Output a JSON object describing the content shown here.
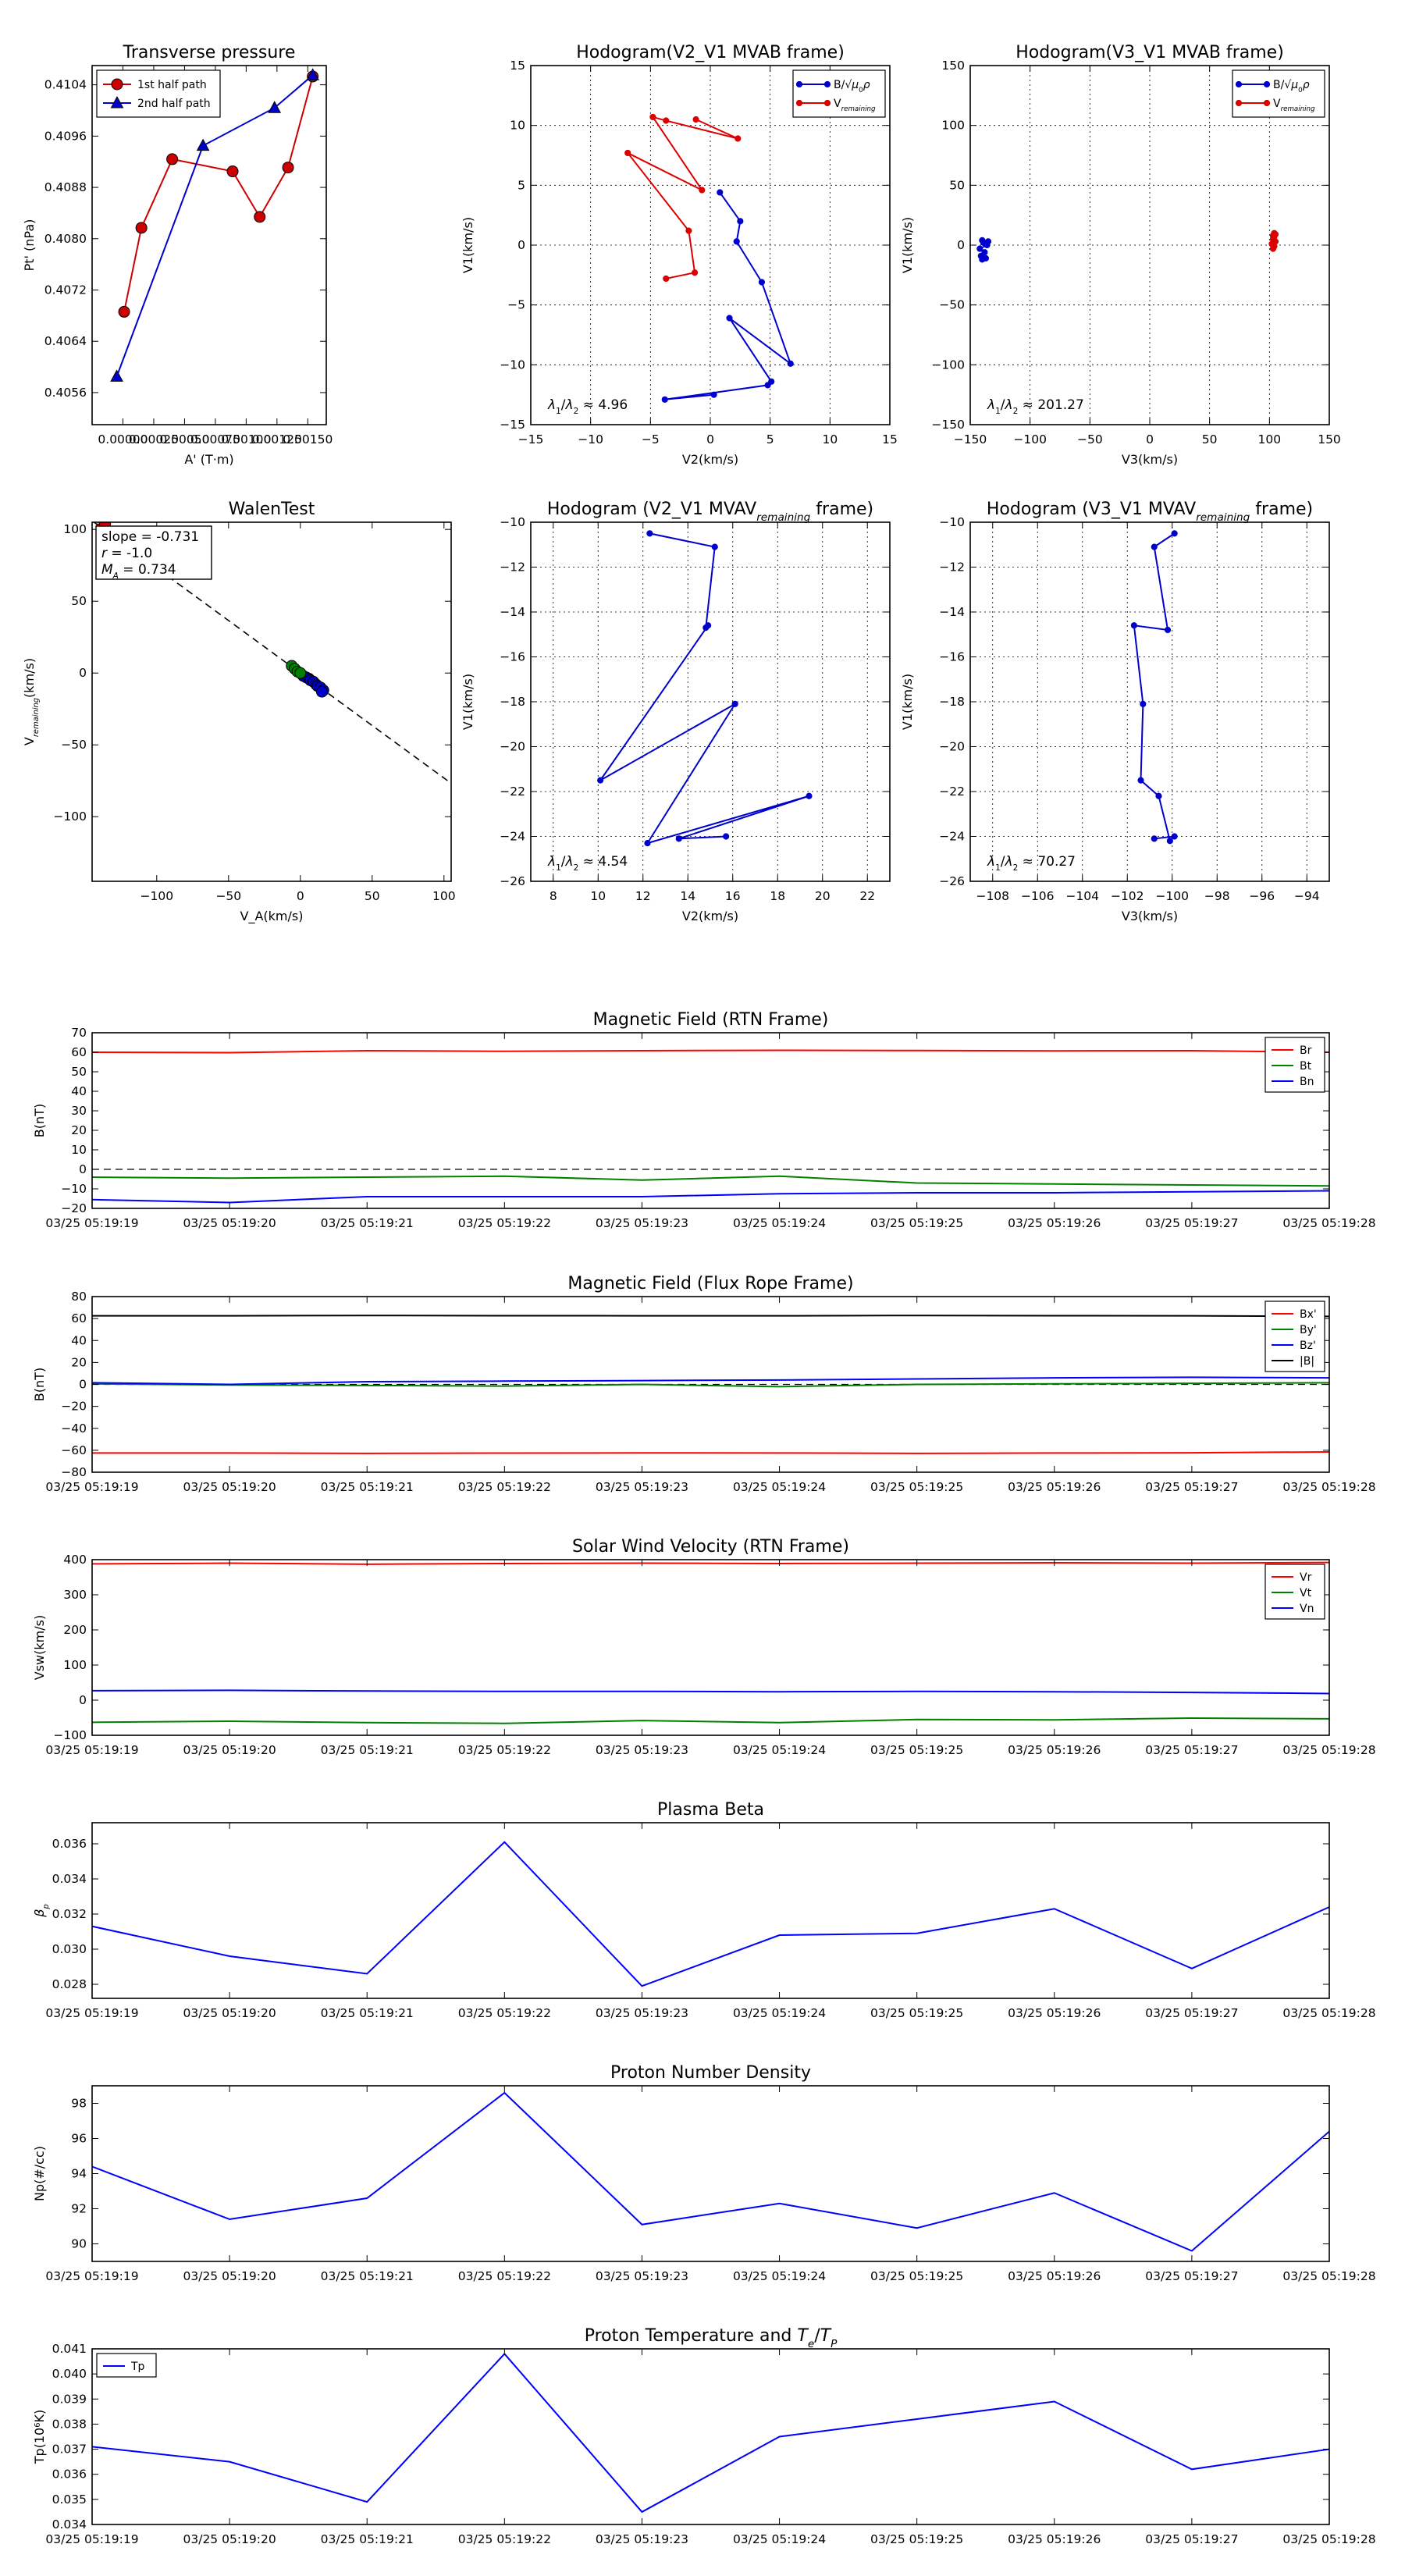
{
  "figure": {
    "suptitle": ""
  },
  "chart_data": [
    {
      "id": "transverse-pressure",
      "type": "line-marker",
      "title": "Transverse pressure",
      "xlabel": "A' (T·m)",
      "ylabel": "Pt' (nPa)",
      "xlim": [
        -0.00025,
        0.00165
      ],
      "ylim": [
        0.4051,
        0.4107
      ],
      "xticks": [
        0.0,
        0.00025,
        0.0005,
        0.00075,
        0.001,
        0.00125,
        0.0015
      ],
      "xticklabels": [
        "0.00000",
        "0.00025",
        "0.00050",
        "0.00075",
        "0.00100",
        "0.00125",
        "0.00150"
      ],
      "yticks": [
        0.4056,
        0.4064,
        0.4072,
        0.408,
        0.4088,
        0.4096,
        0.4104
      ],
      "yticklabels": [
        "0.4056",
        "0.4064",
        "0.4072",
        "0.4080",
        "0.4088",
        "0.4096",
        "0.4104"
      ],
      "grid": false,
      "legend": {
        "position": "top-left",
        "entries": [
          "1st half path",
          "2nd half path"
        ]
      },
      "series": [
        {
          "name": "1st half path",
          "color": "#cc0000",
          "marker": "circle",
          "x": [
            1e-05,
            0.00015,
            0.0004,
            0.00089,
            0.00111,
            0.00134,
            0.00154
          ],
          "y": [
            0.40686,
            0.40817,
            0.40924,
            0.40905,
            0.40834,
            0.40911,
            0.41053
          ]
        },
        {
          "name": "2nd half path",
          "color": "#0000cc",
          "marker": "triangle",
          "x": [
            -5e-05,
            0.00065,
            0.00123,
            0.00154
          ],
          "y": [
            0.40585,
            0.40945,
            0.41004,
            0.41055
          ]
        }
      ]
    },
    {
      "id": "hodogram-v2-v1-mvab",
      "type": "line-marker",
      "title": "Hodogram(V2_V1 MVAB frame)",
      "xlabel": "V2(km/s)",
      "ylabel": "V1(km/s)",
      "xlim": [
        -15,
        15
      ],
      "ylim": [
        -15,
        15
      ],
      "xticks": [
        -15,
        -10,
        -5,
        0,
        5,
        10,
        15
      ],
      "xticklabels": [
        "−15",
        "−10",
        "−5",
        "0",
        "5",
        "10",
        "15"
      ],
      "yticks": [
        -15,
        -10,
        -5,
        0,
        5,
        10,
        15
      ],
      "yticklabels": [
        "−15",
        "−10",
        "−5",
        "0",
        "5",
        "10",
        "15"
      ],
      "grid": true,
      "legend": {
        "position": "top-right",
        "entries": [
          "B/√μ₀ρ",
          "V_remaining"
        ]
      },
      "annotation": {
        "label": "λ₁/λ₂ ≈",
        "value": "4.96",
        "position": "bottom-left"
      },
      "series": [
        {
          "name": "B/√μ₀ρ",
          "color": "#0000cc",
          "marker": "dot",
          "x": [
            0.3,
            -3.8,
            4.8,
            5.1,
            1.6,
            6.7,
            4.3,
            2.2,
            2.5,
            0.8
          ],
          "y": [
            -12.5,
            -12.9,
            -11.7,
            -11.4,
            -6.1,
            -9.9,
            -3.1,
            0.3,
            2.0,
            4.4
          ]
        },
        {
          "name": "V_remaining",
          "color": "#dd0000",
          "marker": "dot",
          "x": [
            -3.7,
            -1.3,
            -1.8,
            -6.9,
            -0.7,
            -4.8,
            -3.7,
            2.3,
            -1.2
          ],
          "y": [
            -2.8,
            -2.3,
            1.2,
            7.7,
            4.6,
            10.7,
            10.4,
            8.9,
            10.5
          ]
        }
      ]
    },
    {
      "id": "hodogram-v3-v1-mvab",
      "type": "line-marker",
      "title": "Hodogram(V3_V1 MVAB frame)",
      "xlabel": "V3(km/s)",
      "ylabel": "V1(km/s)",
      "xlim": [
        -150,
        150
      ],
      "ylim": [
        -150,
        150
      ],
      "xticks": [
        -150,
        -100,
        -50,
        0,
        50,
        100,
        150
      ],
      "xticklabels": [
        "−150",
        "−100",
        "−50",
        "0",
        "50",
        "100",
        "150"
      ],
      "yticks": [
        -150,
        -100,
        -50,
        0,
        50,
        100,
        150
      ],
      "yticklabels": [
        "−150",
        "−100",
        "−50",
        "0",
        "50",
        "100",
        "150"
      ],
      "grid": true,
      "legend": {
        "position": "top-right",
        "entries": [
          "B/√μ₀ρ",
          "V_remaining"
        ]
      },
      "annotation": {
        "label": "λ₁/λ₂ ≈",
        "value": "201.27",
        "position": "bottom-left"
      },
      "series": [
        {
          "name": "B/√μ₀ρ",
          "color": "#0000cc",
          "marker": "dot",
          "x": [
            -140,
            -137,
            -141,
            -138,
            -142,
            -136,
            -139,
            -135,
            -140,
            -137
          ],
          "y": [
            -12,
            -11,
            -9,
            -6,
            -3,
            0,
            2,
            3,
            4,
            1
          ]
        },
        {
          "name": "V_remaining",
          "color": "#dd0000",
          "marker": "dot",
          "x": [
            103,
            104,
            102,
            105,
            103,
            104,
            103,
            105,
            104
          ],
          "y": [
            -3,
            -1,
            1,
            3,
            5,
            7,
            8,
            9,
            10
          ]
        }
      ]
    },
    {
      "id": "walen-test",
      "type": "scatter",
      "title": "WalenTest",
      "xlabel": "V_A(km/s)",
      "ylabel": "V_remaining(km/s)",
      "xlim": [
        -145,
        105
      ],
      "ylim": [
        -145,
        105
      ],
      "xticks": [
        -100,
        -50,
        0,
        50,
        100
      ],
      "xticklabels": [
        "−100",
        "−50",
        "0",
        "50",
        "100"
      ],
      "yticks": [
        -100,
        -50,
        0,
        50,
        100
      ],
      "yticklabels": [
        "−100",
        "−50",
        "0",
        "50",
        "100"
      ],
      "grid": false,
      "stats": {
        "slope": "slope = -0.731",
        "r": "r = -1.0",
        "ma": "M_A = 0.734"
      },
      "fit_line": {
        "slope": -0.731,
        "intercept": 0
      },
      "series": [
        {
          "name": "blue",
          "color": "#0000cc",
          "marker": "circle",
          "x": [
            2,
            4,
            6,
            7,
            9,
            11,
            12,
            14,
            16,
            15
          ],
          "y": [
            -2,
            -3,
            -4,
            -5,
            -6,
            -8,
            -9,
            -10,
            -12,
            -13
          ]
        },
        {
          "name": "green",
          "color": "#008000",
          "marker": "circle",
          "x": [
            -6,
            -4,
            -2,
            0
          ],
          "y": [
            5,
            3,
            1,
            0
          ]
        },
        {
          "name": "red",
          "color": "#cc0000",
          "marker": "square",
          "x": [
            -138,
            -136
          ],
          "y": [
            100,
            101
          ]
        }
      ]
    },
    {
      "id": "hodogram-v2-v1-mvav",
      "type": "line-marker",
      "title": "Hodogram (V2_V1 MVAV_remaining frame)",
      "xlabel": "V2(km/s)",
      "ylabel": "V1(km/s)",
      "xlim": [
        7,
        23
      ],
      "ylim": [
        -26,
        -10
      ],
      "xticks": [
        8,
        10,
        12,
        14,
        16,
        18,
        20,
        22
      ],
      "xticklabels": [
        "8",
        "10",
        "12",
        "14",
        "16",
        "18",
        "20",
        "22"
      ],
      "yticks": [
        -26,
        -24,
        -22,
        -20,
        -18,
        -16,
        -14,
        -12,
        -10
      ],
      "yticklabels": [
        "−26",
        "−24",
        "−22",
        "−20",
        "−18",
        "−16",
        "−14",
        "−12",
        "−10"
      ],
      "grid": true,
      "annotation": {
        "label": "λ₁/λ₂ ≈",
        "value": "4.54",
        "position": "bottom-left"
      },
      "series": [
        {
          "name": "B",
          "color": "#0000cc",
          "marker": "dot",
          "x": [
            12.3,
            15.2,
            14.8,
            14.9,
            10.1,
            16.1,
            12.2,
            19.4,
            13.6,
            15.7
          ],
          "y": [
            -10.5,
            -11.1,
            -14.7,
            -14.6,
            -21.5,
            -18.1,
            -24.3,
            -22.2,
            -24.1,
            -24.0
          ]
        }
      ]
    },
    {
      "id": "hodogram-v3-v1-mvav",
      "type": "line-marker",
      "title": "Hodogram (V3_V1 MVAV_remaining frame)",
      "xlabel": "V3(km/s)",
      "ylabel": "V1(km/s)",
      "xlim": [
        -109,
        -93
      ],
      "ylim": [
        -26,
        -10
      ],
      "xticks": [
        -108,
        -106,
        -104,
        -102,
        -100,
        -98,
        -96,
        -94
      ],
      "xticklabels": [
        "−108",
        "−106",
        "−104",
        "−102",
        "−100",
        "−98",
        "−96",
        "−94"
      ],
      "yticks": [
        -26,
        -24,
        -22,
        -20,
        -18,
        -16,
        -14,
        -12,
        -10
      ],
      "yticklabels": [
        "−26",
        "−24",
        "−22",
        "−20",
        "−18",
        "−16",
        "−14",
        "−12",
        "−10"
      ],
      "grid": true,
      "annotation": {
        "label": "λ₁/λ₂ ≈",
        "value": "70.27",
        "position": "bottom-left"
      },
      "series": [
        {
          "name": "B",
          "color": "#0000cc",
          "marker": "dot",
          "x": [
            -99.9,
            -100.8,
            -100.2,
            -101.7,
            -101.3,
            -101.4,
            -100.6,
            -100.1,
            -99.9,
            -100.8
          ],
          "y": [
            -10.5,
            -11.1,
            -14.8,
            -14.6,
            -18.1,
            -21.5,
            -22.2,
            -24.2,
            -24.0,
            -24.1
          ]
        }
      ]
    },
    {
      "id": "magnetic-field-rtn",
      "type": "line",
      "title": "Magnetic Field (RTN Frame)",
      "xlabel": "",
      "ylabel": "B(nT)",
      "ylim": [
        -20,
        70
      ],
      "yticks": [
        -20,
        -10,
        0,
        10,
        20,
        30,
        40,
        50,
        60,
        70
      ],
      "yticklabels": [
        "−20",
        "−10",
        "0",
        "10",
        "20",
        "30",
        "40",
        "50",
        "60",
        "70"
      ],
      "legend": {
        "position": "top-right",
        "entries": [
          "Br",
          "Bt",
          "Bn"
        ]
      },
      "zero_line": true,
      "series": [
        {
          "name": "Br",
          "color": "#ff0000",
          "values": [
            60.0,
            59.8,
            60.8,
            60.5,
            60.8,
            61.0,
            60.9,
            60.7,
            60.8,
            60.0
          ]
        },
        {
          "name": "Bt",
          "color": "#008000",
          "values": [
            -4.0,
            -4.5,
            -4.0,
            -3.5,
            -5.5,
            -3.5,
            -7.0,
            -7.5,
            -8.0,
            -8.5
          ]
        },
        {
          "name": "Bn",
          "color": "#0000ff",
          "values": [
            -15.5,
            -17.0,
            -14.0,
            -14.0,
            -14.0,
            -12.5,
            -12.0,
            -12.0,
            -11.5,
            -11.0
          ]
        }
      ]
    },
    {
      "id": "magnetic-field-flux-rope",
      "type": "line",
      "title": "Magnetic Field (Flux Rope Frame)",
      "xlabel": "",
      "ylabel": "B(nT)",
      "ylim": [
        -80,
        80
      ],
      "yticks": [
        -80,
        -60,
        -40,
        -20,
        0,
        20,
        40,
        60,
        80
      ],
      "yticklabels": [
        "−80",
        "−60",
        "−40",
        "−20",
        "0",
        "20",
        "40",
        "60",
        "80"
      ],
      "legend": {
        "position": "top-right",
        "entries": [
          "Bx'",
          "By'",
          "Bz'",
          "|B|"
        ]
      },
      "zero_line": true,
      "series": [
        {
          "name": "Bx'",
          "color": "#ff0000",
          "values": [
            -62.5,
            -62.5,
            -62.8,
            -62.6,
            -62.4,
            -62.5,
            -62.8,
            -62.5,
            -62.3,
            -61.5
          ]
        },
        {
          "name": "By'",
          "color": "#008000",
          "values": [
            0.5,
            -0.5,
            -1.0,
            -1.5,
            0.0,
            -2.0,
            0.0,
            0.5,
            1.0,
            1.5
          ]
        },
        {
          "name": "Bz'",
          "color": "#0000ff",
          "values": [
            1.5,
            0.0,
            2.5,
            3.0,
            3.5,
            4.0,
            5.0,
            6.0,
            6.5,
            6.0
          ]
        },
        {
          "name": "|B|",
          "color": "#000000",
          "values": [
            62.5,
            62.5,
            62.8,
            62.6,
            62.5,
            62.5,
            62.8,
            62.6,
            62.5,
            62.0
          ]
        }
      ]
    },
    {
      "id": "solar-wind-velocity",
      "type": "line",
      "title": "Solar Wind Velocity (RTN Frame)",
      "xlabel": "",
      "ylabel": "Vsw(km/s)",
      "ylim": [
        -100,
        400
      ],
      "yticks": [
        -100,
        0,
        100,
        200,
        300,
        400
      ],
      "yticklabels": [
        "−100",
        "0",
        "100",
        "200",
        "300",
        "400"
      ],
      "legend": {
        "position": "top-right",
        "entries": [
          "Vr",
          "Vt",
          "Vn"
        ]
      },
      "series": [
        {
          "name": "Vr",
          "color": "#ff0000",
          "values": [
            388,
            390,
            387,
            389,
            390,
            389,
            390,
            391,
            390,
            392
          ]
        },
        {
          "name": "Vt",
          "color": "#008000",
          "values": [
            -63,
            -60,
            -64,
            -66,
            -58,
            -64,
            -55,
            -56,
            -51,
            -53
          ]
        },
        {
          "name": "Vn",
          "color": "#0000ff",
          "values": [
            27,
            28,
            26,
            25,
            25,
            24,
            25,
            24,
            22,
            19
          ]
        }
      ]
    },
    {
      "id": "plasma-beta",
      "type": "line",
      "title": "Plasma Beta",
      "xlabel": "",
      "ylabel": "βp",
      "ylim": [
        0.0272,
        0.0372
      ],
      "yticks": [
        0.028,
        0.03,
        0.032,
        0.034,
        0.036
      ],
      "yticklabels": [
        "0.028",
        "0.030",
        "0.032",
        "0.034",
        "0.036"
      ],
      "series": [
        {
          "name": "beta",
          "color": "#0000ff",
          "values": [
            0.0313,
            0.0296,
            0.0286,
            0.0361,
            0.0279,
            0.0308,
            0.0309,
            0.0323,
            0.0289,
            0.0324
          ]
        }
      ]
    },
    {
      "id": "proton-number-density",
      "type": "line",
      "title": "Proton Number Density",
      "xlabel": "",
      "ylabel": "Np(#/cc)",
      "ylim": [
        89.0,
        99.0
      ],
      "yticks": [
        90,
        92,
        94,
        96,
        98
      ],
      "yticklabels": [
        "90",
        "92",
        "94",
        "96",
        "98"
      ],
      "series": [
        {
          "name": "Np",
          "color": "#0000ff",
          "values": [
            94.4,
            91.4,
            92.6,
            98.6,
            91.1,
            92.3,
            90.9,
            92.9,
            89.6,
            96.4
          ]
        }
      ]
    },
    {
      "id": "proton-temperature",
      "type": "line",
      "title": "Proton Temperature and Te/Tp",
      "xlabel": "",
      "ylabel": "Tp(10⁶K)",
      "ylim": [
        0.034,
        0.041
      ],
      "yticks": [
        0.034,
        0.035,
        0.036,
        0.037,
        0.038,
        0.039,
        0.04,
        0.041
      ],
      "yticklabels": [
        "0.034",
        "0.035",
        "0.036",
        "0.037",
        "0.038",
        "0.039",
        "0.040",
        "0.041"
      ],
      "legend": {
        "position": "top-left",
        "entries": [
          "Tp"
        ]
      },
      "series": [
        {
          "name": "Tp",
          "color": "#0000ff",
          "values": [
            0.0371,
            0.0365,
            0.0349,
            0.0408,
            0.0345,
            0.0375,
            0.0382,
            0.0389,
            0.0362,
            0.037
          ]
        }
      ]
    }
  ],
  "time_axis": {
    "ticklabels": [
      "03/25 05:19:19",
      "03/25 05:19:20",
      "03/25 05:19:21",
      "03/25 05:19:22",
      "03/25 05:19:23",
      "03/25 05:19:24",
      "03/25 05:19:25",
      "03/25 05:19:26",
      "03/25 05:19:27",
      "03/25 05:19:28"
    ]
  }
}
